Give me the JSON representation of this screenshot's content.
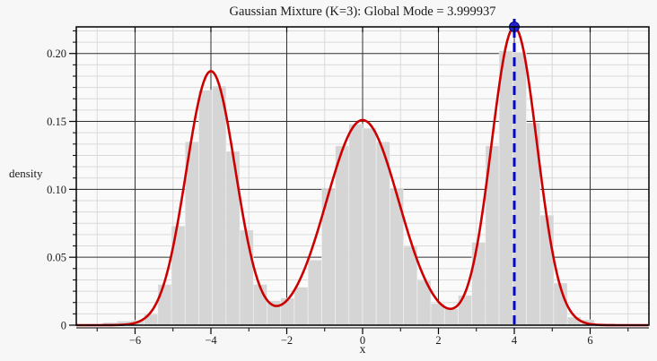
{
  "chart_data": {
    "type": "histogram_with_density_curve",
    "title": "Gaussian Mixture (K=3): Global Mode = 3.999937",
    "xlabel": "x",
    "ylabel": "density",
    "xlim": [
      -7.55,
      7.55
    ],
    "ylim": [
      0,
      0.2196
    ],
    "xticks_major": [
      -6,
      -4,
      -2,
      0,
      2,
      4,
      6
    ],
    "xtick_labels": [
      "−6",
      "−4",
      "−2",
      "0",
      "2",
      "4",
      "6"
    ],
    "xticks_minor": [
      -7,
      -5,
      -3,
      -1,
      1,
      3,
      5,
      7
    ],
    "yticks_major": [
      0,
      0.05,
      0.1,
      0.15,
      0.2
    ],
    "ytick_labels": [
      "0",
      "0.05",
      "0.10",
      "0.15",
      "0.20"
    ],
    "y_major_step": 0.05,
    "y_minor_divisions": 6,
    "grid": {
      "enabled": true,
      "legend": "none"
    },
    "mixture": {
      "K": 3,
      "means": [
        -4,
        0,
        4
      ],
      "sigmas": [
        0.65,
        0.95,
        0.6
      ],
      "peak_heights": [
        0.187,
        0.151,
        0.2196
      ]
    },
    "global_mode": {
      "x": 3.999937,
      "density": 0.2196,
      "label": "3.999937"
    },
    "histogram": {
      "bin_start": -7.2,
      "bin_width": 0.36,
      "heights": [
        0,
        0.002,
        0.003,
        0.0035,
        0.008,
        0.03,
        0.073,
        0.135,
        0.173,
        0.176,
        0.128,
        0.07,
        0.03,
        0.018,
        0.02,
        0.028,
        0.048,
        0.1,
        0.132,
        0.148,
        0.145,
        0.135,
        0.1,
        0.058,
        0.033,
        0.016,
        0.012,
        0.022,
        0.061,
        0.132,
        0.202,
        0.201,
        0.149,
        0.081,
        0.031,
        0.006,
        0.004,
        0.001,
        0,
        0
      ]
    },
    "colors": {
      "curve": "#cc0000",
      "mode_line": "#0000cc",
      "mode_marker_fill": "#2222cc",
      "mode_marker_edge": "#000088",
      "bars": "#d5d5d5",
      "bar_seam": "rgba(255,255,255,0.5)",
      "grid_major": "#303030",
      "grid_minor": "#d9d9d9",
      "frame": "#000000",
      "background": "#f7f7f7",
      "plot_background": "#fafafa",
      "text": "#1a1a1a"
    }
  }
}
